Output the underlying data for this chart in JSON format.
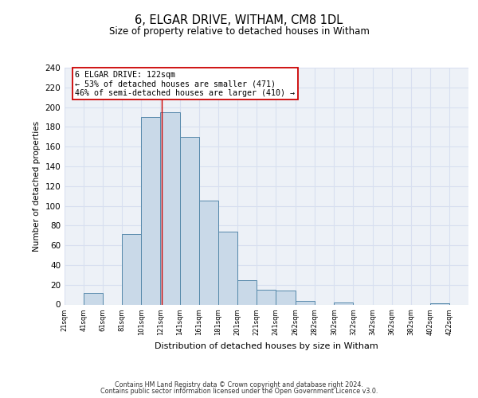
{
  "title": "6, ELGAR DRIVE, WITHAM, CM8 1DL",
  "subtitle": "Size of property relative to detached houses in Witham",
  "xlabel": "Distribution of detached houses by size in Witham",
  "ylabel": "Number of detached properties",
  "bar_left_edges": [
    21,
    41,
    61,
    81,
    101,
    121,
    141,
    161,
    181,
    201,
    221,
    241,
    262,
    282,
    302,
    322,
    342,
    362,
    382,
    402
  ],
  "bar_widths": [
    20,
    20,
    20,
    20,
    20,
    20,
    20,
    20,
    20,
    20,
    20,
    21,
    20,
    20,
    20,
    20,
    20,
    20,
    20,
    20
  ],
  "bar_heights": [
    0,
    12,
    0,
    71,
    190,
    195,
    170,
    105,
    74,
    25,
    15,
    14,
    4,
    0,
    2,
    0,
    0,
    0,
    0,
    1
  ],
  "bar_facecolor": "#c9d9e8",
  "bar_edgecolor": "#5588aa",
  "property_line_x": 122,
  "property_line_color": "#cc0000",
  "annotation_line1": "6 ELGAR DRIVE: 122sqm",
  "annotation_line2": "← 53% of detached houses are smaller (471)",
  "annotation_line3": "46% of semi-detached houses are larger (410) →",
  "annotation_box_facecolor": "#ffffff",
  "annotation_box_edgecolor": "#cc0000",
  "ylim": [
    0,
    240
  ],
  "yticks": [
    0,
    20,
    40,
    60,
    80,
    100,
    120,
    140,
    160,
    180,
    200,
    220,
    240
  ],
  "xtick_labels": [
    "21sqm",
    "41sqm",
    "61sqm",
    "81sqm",
    "101sqm",
    "121sqm",
    "141sqm",
    "161sqm",
    "181sqm",
    "201sqm",
    "221sqm",
    "241sqm",
    "262sqm",
    "282sqm",
    "302sqm",
    "322sqm",
    "342sqm",
    "362sqm",
    "382sqm",
    "402sqm",
    "422sqm"
  ],
  "xtick_positions": [
    21,
    41,
    61,
    81,
    101,
    121,
    141,
    161,
    181,
    201,
    221,
    241,
    262,
    282,
    302,
    322,
    342,
    362,
    382,
    402,
    422
  ],
  "grid_color": "#d8dff0",
  "bg_color": "#edf1f7",
  "footer_line1": "Contains HM Land Registry data © Crown copyright and database right 2024.",
  "footer_line2": "Contains public sector information licensed under the Open Government Licence v3.0."
}
